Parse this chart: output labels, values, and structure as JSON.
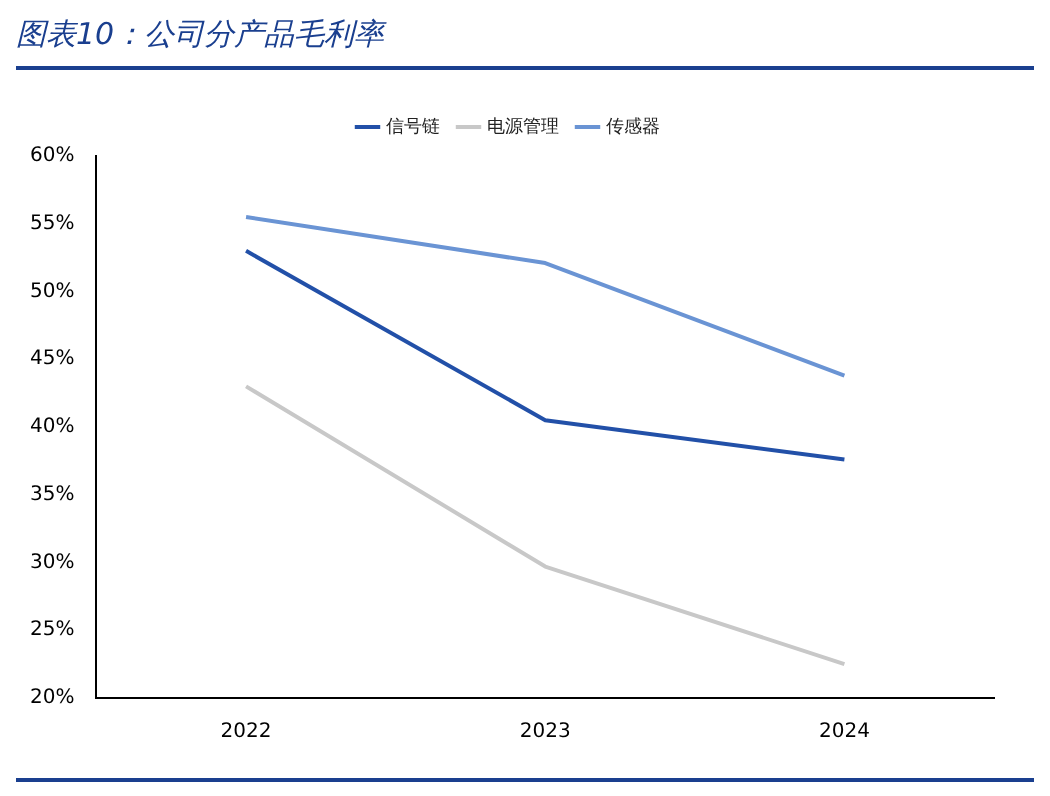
{
  "chart_data": {
    "type": "line",
    "title": "图表10：公司分产品毛利率",
    "categories": [
      "2022",
      "2023",
      "2024"
    ],
    "series": [
      {
        "name": "信号链",
        "color": "#2250a8",
        "values": [
          53,
          40.5,
          37.6
        ]
      },
      {
        "name": "电源管理",
        "color": "#c8c8c8",
        "values": [
          43,
          29.7,
          22.5
        ]
      },
      {
        "name": "传感器",
        "color": "#6a94d4",
        "values": [
          55.5,
          52.1,
          43.8
        ]
      }
    ],
    "ylim": [
      20,
      60
    ],
    "yticks": [
      {
        "value": 20,
        "label": "20%"
      },
      {
        "value": 25,
        "label": "25%"
      },
      {
        "value": 30,
        "label": "30%"
      },
      {
        "value": 35,
        "label": "35%"
      },
      {
        "value": 40,
        "label": "40%"
      },
      {
        "value": 45,
        "label": "45%"
      },
      {
        "value": 50,
        "label": "50%"
      },
      {
        "value": 55,
        "label": "55%"
      },
      {
        "value": 60,
        "label": "60%"
      }
    ],
    "grid": false,
    "legend": "top",
    "marker": "none",
    "line_style": "solid"
  }
}
